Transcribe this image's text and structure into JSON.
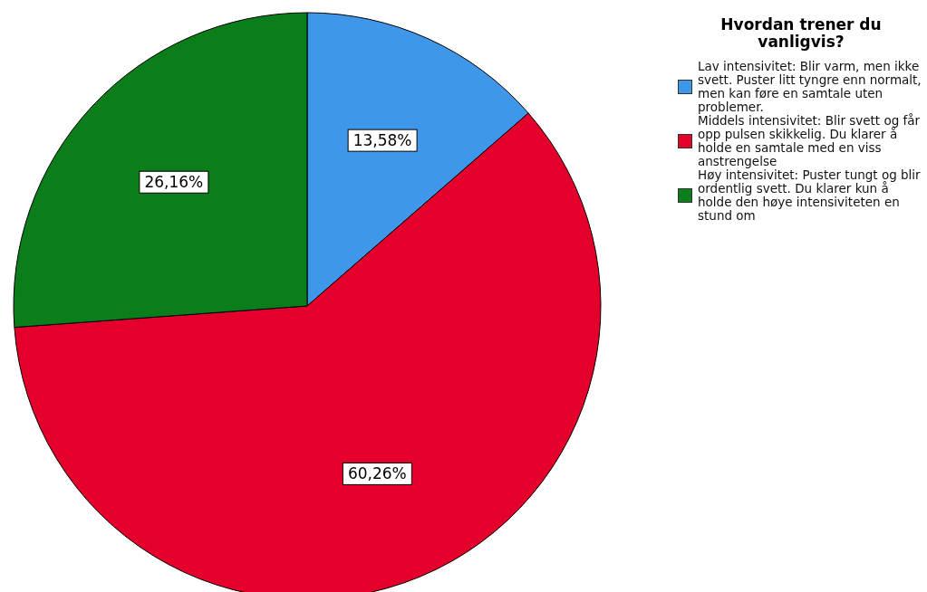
{
  "chart_data": {
    "type": "pie",
    "legend_title": "Hvordan trener du vanligvis?",
    "categories": [
      "Lav intensivitet: Blir varm, men ikke svett. Puster litt tyngre enn normalt, men kan føre en samtale uten problemer.",
      "Middels intensivitet: Blir svett og får opp pulsen skikkelig. Du klarer å holde en samtale med en viss anstrengelse",
      "Høy intensivitet: Puster tungt og blir ordentlig svett. Du klarer kun å holde den høye intensiviteten en stund om"
    ],
    "values": [
      13.58,
      60.26,
      26.16
    ],
    "colors": [
      "#3f97ea",
      "#e4002b",
      "#0b7d1a"
    ],
    "value_labels": [
      "13,58%",
      "60,26%",
      "26,16%"
    ],
    "legend": "right"
  }
}
